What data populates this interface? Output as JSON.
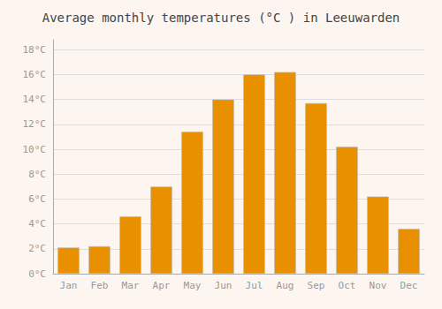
{
  "chart_data": {
    "type": "bar",
    "title": "Average monthly temperatures (°C ) in Leeuwarden",
    "categories": [
      "Jan",
      "Feb",
      "Mar",
      "Apr",
      "May",
      "Jun",
      "Jul",
      "Aug",
      "Sep",
      "Oct",
      "Nov",
      "Dec"
    ],
    "values": [
      2.1,
      2.2,
      4.6,
      7.0,
      11.4,
      14.0,
      16.0,
      16.2,
      13.7,
      10.2,
      6.2,
      3.6
    ],
    "color": "#E89000",
    "ylim": [
      0,
      18.8
    ],
    "yticks": [
      {
        "value": 0,
        "label": "0°C"
      },
      {
        "value": 2,
        "label": "2°C"
      },
      {
        "value": 4,
        "label": "4°C"
      },
      {
        "value": 6,
        "label": "6°C"
      },
      {
        "value": 8,
        "label": "8°C"
      },
      {
        "value": 10,
        "label": "10°C"
      },
      {
        "value": 12,
        "label": "12°C"
      },
      {
        "value": 14,
        "label": "14°C"
      },
      {
        "value": 16,
        "label": "16°C"
      },
      {
        "value": 18,
        "label": "18°C"
      }
    ],
    "grid": true
  }
}
